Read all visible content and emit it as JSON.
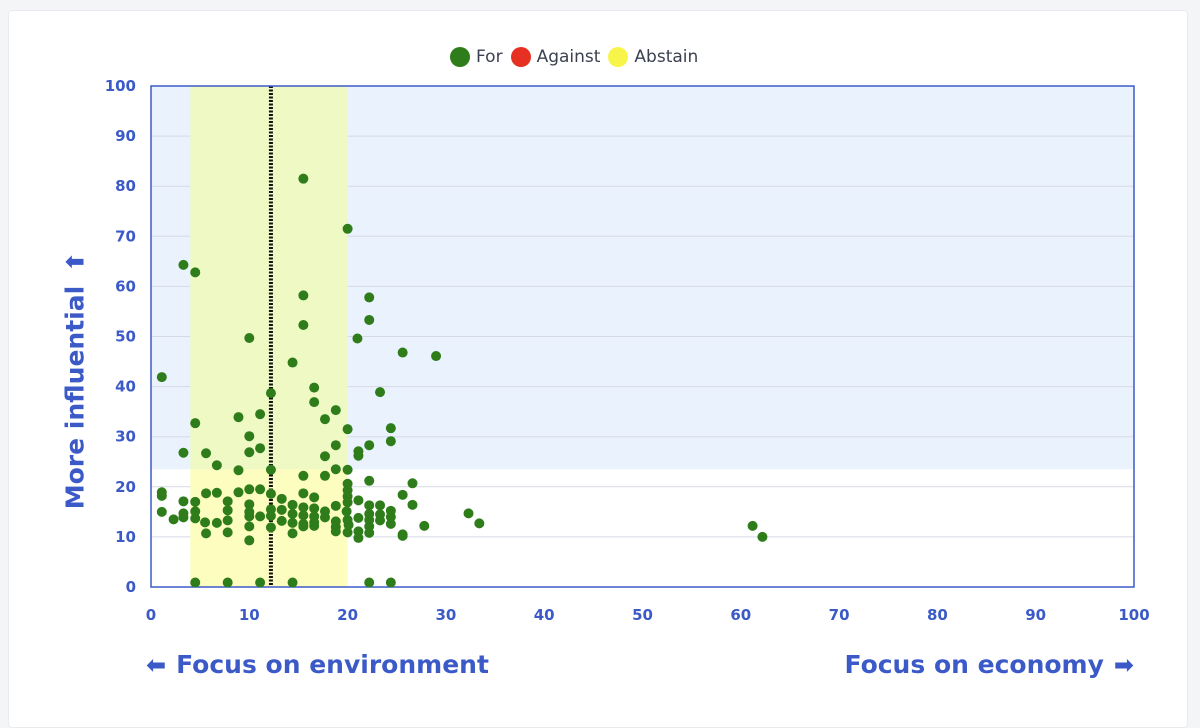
{
  "chart_data": {
    "type": "scatter",
    "legend": [
      {
        "name": "For",
        "color": "#2e7d1a"
      },
      {
        "name": "Against",
        "color": "#e63022"
      },
      {
        "name": "Abstain",
        "color": "#f7f54a"
      }
    ],
    "xlabel_left": "Focus on environment",
    "xlabel_right": "Focus on economy",
    "ylabel": "More influential",
    "xlim": [
      0,
      100
    ],
    "ylim": [
      0,
      100
    ],
    "xticks": [
      0,
      10,
      20,
      30,
      40,
      50,
      60,
      70,
      80,
      90,
      100
    ],
    "yticks": [
      0,
      10,
      20,
      30,
      40,
      50,
      60,
      70,
      80,
      90,
      100
    ],
    "grid": true,
    "regions": {
      "upper_shade_y_from": 23.5,
      "upper_shade_color": "#eaf2fe",
      "band_x": [
        4,
        20
      ],
      "band_color_upper": "#eef9c4",
      "band_color_lower": "#fdfdc0",
      "median_x": 12.2
    },
    "series": [
      {
        "name": "For",
        "color": "#2e7d1a",
        "points": [
          [
            15.5,
            81.5
          ],
          [
            20,
            71.5
          ],
          [
            3.3,
            64.3
          ],
          [
            4.5,
            62.8
          ],
          [
            15.5,
            58.2
          ],
          [
            22.2,
            57.8
          ],
          [
            22.2,
            53.3
          ],
          [
            15.5,
            52.3
          ],
          [
            10,
            49.7
          ],
          [
            21,
            49.6
          ],
          [
            25.6,
            46.8
          ],
          [
            29,
            46.1
          ],
          [
            14.4,
            44.8
          ],
          [
            1.1,
            41.9
          ],
          [
            16.6,
            39.8
          ],
          [
            23.3,
            38.9
          ],
          [
            12.2,
            38.7
          ],
          [
            16.6,
            36.9
          ],
          [
            18.8,
            35.3
          ],
          [
            11.1,
            34.5
          ],
          [
            8.9,
            33.9
          ],
          [
            17.7,
            33.5
          ],
          [
            4.5,
            32.7
          ],
          [
            20,
            31.5
          ],
          [
            24.4,
            31.7
          ],
          [
            10,
            30.1
          ],
          [
            24.4,
            29.1
          ],
          [
            18.8,
            28.3
          ],
          [
            22.2,
            28.3
          ],
          [
            11.1,
            27.7
          ],
          [
            3.3,
            26.8
          ],
          [
            5.6,
            26.7
          ],
          [
            10,
            26.9
          ],
          [
            21.1,
            26.2
          ],
          [
            21.1,
            27.1
          ],
          [
            17.7,
            26.1
          ],
          [
            6.7,
            24.3
          ],
          [
            8.9,
            23.3
          ],
          [
            12.2,
            23.4
          ],
          [
            18.8,
            23.5
          ],
          [
            20,
            23.4
          ],
          [
            15.5,
            22.2
          ],
          [
            17.7,
            22.2
          ],
          [
            22.2,
            21.2
          ],
          [
            26.6,
            20.7
          ],
          [
            20,
            20.6
          ],
          [
            10,
            19.5
          ],
          [
            11.1,
            19.5
          ],
          [
            20,
            19.3
          ],
          [
            1.1,
            18.9
          ],
          [
            8.9,
            18.9
          ],
          [
            12.2,
            18.6
          ],
          [
            15.5,
            18.7
          ],
          [
            5.6,
            18.7
          ],
          [
            6.7,
            18.8
          ],
          [
            1.1,
            18.2
          ],
          [
            20,
            18.1
          ],
          [
            16.6,
            17.9
          ],
          [
            13.3,
            17.6
          ],
          [
            21.1,
            17.3
          ],
          [
            25.6,
            18.4
          ],
          [
            3.3,
            17.1
          ],
          [
            4.5,
            17.0
          ],
          [
            7.8,
            17.1
          ],
          [
            20,
            16.9
          ],
          [
            10,
            16.5
          ],
          [
            14.4,
            16.4
          ],
          [
            26.6,
            16.4
          ],
          [
            18.8,
            16.2
          ],
          [
            22.2,
            16.3
          ],
          [
            23.3,
            16.3
          ],
          [
            15.5,
            15.9
          ],
          [
            16.6,
            15.7
          ],
          [
            12.2,
            15.5
          ],
          [
            13.3,
            15.4
          ],
          [
            1.1,
            15.0
          ],
          [
            4.5,
            15.1
          ],
          [
            7.8,
            15.3
          ],
          [
            10,
            15.0
          ],
          [
            19.9,
            15.1
          ],
          [
            17.7,
            15.1
          ],
          [
            24.4,
            15.2
          ],
          [
            3.3,
            14.7
          ],
          [
            14.4,
            14.6
          ],
          [
            22.2,
            14.6
          ],
          [
            23.3,
            14.5
          ],
          [
            32.3,
            14.7
          ],
          [
            10,
            14.1
          ],
          [
            11.1,
            14.1
          ],
          [
            12.2,
            14.2
          ],
          [
            15.5,
            14.3
          ],
          [
            16.6,
            14.1
          ],
          [
            17.7,
            13.9
          ],
          [
            21.1,
            13.8
          ],
          [
            24.4,
            14.0
          ],
          [
            2.3,
            13.5
          ],
          [
            3.3,
            13.9
          ],
          [
            4.5,
            13.7
          ],
          [
            7.8,
            13.3
          ],
          [
            18.8,
            13.1
          ],
          [
            20,
            13.4
          ],
          [
            22.2,
            13.4
          ],
          [
            23.3,
            13.3
          ],
          [
            5.5,
            12.9
          ],
          [
            6.7,
            12.8
          ],
          [
            13.3,
            13.2
          ],
          [
            14.4,
            12.8
          ],
          [
            15.5,
            12.6
          ],
          [
            16.6,
            12.9
          ],
          [
            24.4,
            12.6
          ],
          [
            33.4,
            12.7
          ],
          [
            10,
            12.1
          ],
          [
            12.2,
            11.9
          ],
          [
            15.5,
            12.1
          ],
          [
            16.6,
            12.2
          ],
          [
            18.8,
            12.0
          ],
          [
            20.1,
            12.4
          ],
          [
            22.2,
            12.1
          ],
          [
            27.8,
            12.2
          ],
          [
            61.2,
            12.2
          ],
          [
            5.6,
            10.7
          ],
          [
            7.8,
            10.9
          ],
          [
            14.4,
            10.7
          ],
          [
            18.8,
            11.1
          ],
          [
            20,
            10.9
          ],
          [
            21.1,
            11.1
          ],
          [
            22.2,
            10.8
          ],
          [
            25.6,
            10.5
          ],
          [
            21.1,
            9.8
          ],
          [
            25.6,
            10.2
          ],
          [
            10,
            9.3
          ],
          [
            62.2,
            10.0
          ],
          [
            4.5,
            0.9
          ],
          [
            7.8,
            0.9
          ],
          [
            11.1,
            0.9
          ],
          [
            14.4,
            0.9
          ],
          [
            22.2,
            0.9
          ],
          [
            24.4,
            0.9
          ]
        ]
      }
    ]
  }
}
